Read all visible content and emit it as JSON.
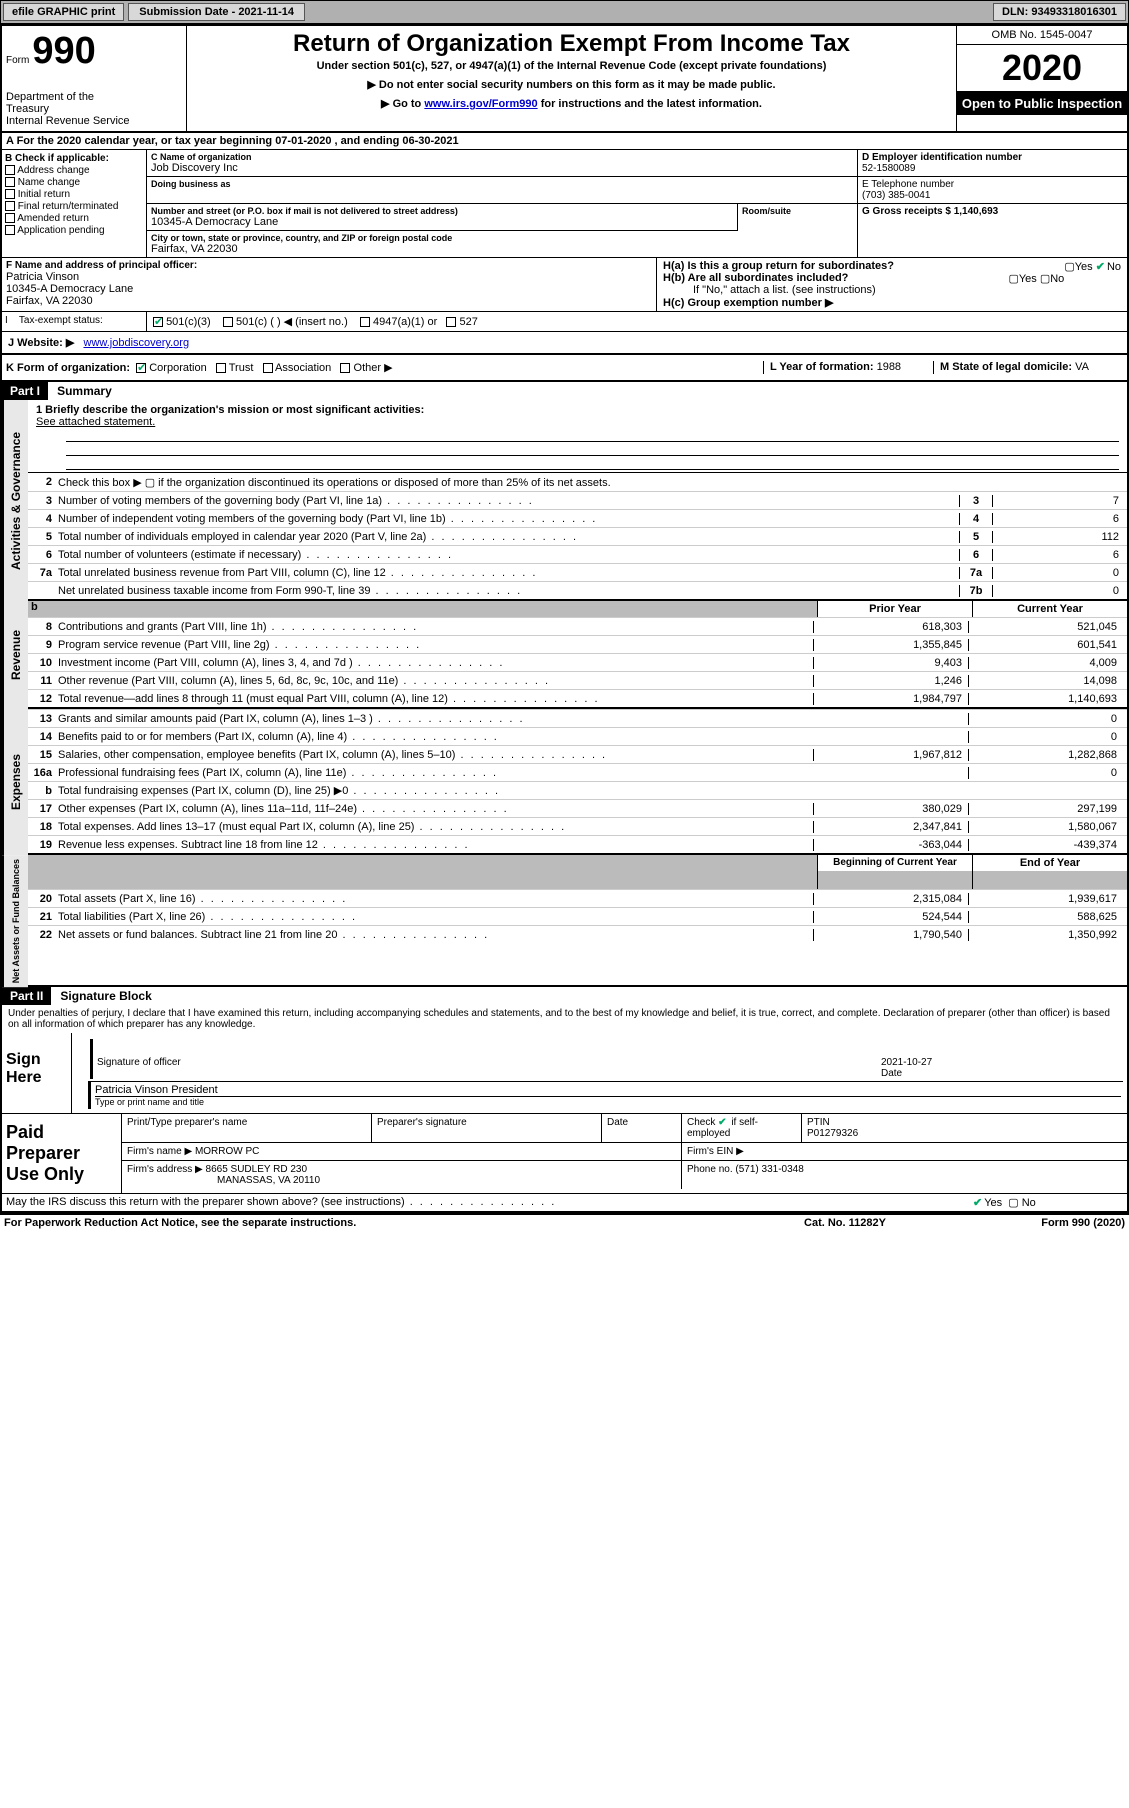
{
  "topbar": {
    "efile": "efile GRAPHIC print",
    "submission_label": "Submission Date - 2021-11-14",
    "dln": "DLN: 93493318016301"
  },
  "header": {
    "form_word": "Form",
    "form_num": "990",
    "dept": "Department of the Treasury\nInternal Revenue Service",
    "title": "Return of Organization Exempt From Income Tax",
    "subtitle": "Under section 501(c), 527, or 4947(a)(1) of the Internal Revenue Code (except private foundations)",
    "note1": "▶ Do not enter social security numbers on this form as it may be made public.",
    "note2_pre": "▶ Go to ",
    "note2_link": "www.irs.gov/Form990",
    "note2_post": " for instructions and the latest information.",
    "omb": "OMB No. 1545-0047",
    "year": "2020",
    "open": "Open to Public Inspection"
  },
  "rowA": "A  For the 2020 calendar year, or tax year beginning 07-01-2020   , and ending 06-30-2021",
  "colB": {
    "head": "B Check if applicable:",
    "items": [
      "Address change",
      "Name change",
      "Initial return",
      "Final return/terminated",
      "Amended return",
      "Application pending"
    ]
  },
  "org": {
    "name_label": "C Name of organization",
    "name": "Job Discovery Inc",
    "dba_label": "Doing business as",
    "addr_label": "Number and street (or P.O. box if mail is not delivered to street address)",
    "addr": "10345-A Democracy Lane",
    "room_label": "Room/suite",
    "city_label": "City or town, state or province, country, and ZIP or foreign postal code",
    "city": "Fairfax, VA  22030"
  },
  "rightCol": {
    "ein_label": "D Employer identification number",
    "ein": "52-1580089",
    "phone_label": "E Telephone number",
    "phone": "(703) 385-0041",
    "gross_label": "G Gross receipts $ 1,140,693"
  },
  "officer": {
    "label": "F  Name and address of principal officer:",
    "name": "Patricia Vinson",
    "addr1": "10345-A Democracy Lane",
    "addr2": "Fairfax, VA  22030"
  },
  "groupH": {
    "ha": "H(a)  Is this a group return for subordinates?",
    "hb": "H(b)  Are all subordinates included?",
    "hnote": "If \"No,\" attach a list. (see instructions)",
    "hc": "H(c)  Group exemption number ▶"
  },
  "taxStatus": {
    "label": "Tax-exempt status:",
    "c3": "501(c)(3)",
    "c": "501(c) (  ) ◀ (insert no.)",
    "a4947": "4947(a)(1) or",
    "s527": "527"
  },
  "website": {
    "label": "J  Website: ▶",
    "url": "www.jobdiscovery.org"
  },
  "rowK": {
    "k": "K Form of organization:",
    "corp": "Corporation",
    "trust": "Trust",
    "assoc": "Association",
    "other": "Other ▶",
    "l_label": "L Year of formation:",
    "l_val": "1988",
    "m_label": "M State of legal domicile:",
    "m_val": "VA"
  },
  "part1": {
    "header": "Part I",
    "title": "Summary"
  },
  "summary": {
    "mission_label": "1   Briefly describe the organization's mission or most significant activities:",
    "mission": "See attached statement.",
    "line2": "Check this box ▶ ▢  if the organization discontinued its operations or disposed of more than 25% of its net assets.",
    "gov": [
      {
        "n": "3",
        "t": "Number of voting members of the governing body (Part VI, line 1a)",
        "b": "3",
        "v": "7"
      },
      {
        "n": "4",
        "t": "Number of independent voting members of the governing body (Part VI, line 1b)",
        "b": "4",
        "v": "6"
      },
      {
        "n": "5",
        "t": "Total number of individuals employed in calendar year 2020 (Part V, line 2a)",
        "b": "5",
        "v": "112"
      },
      {
        "n": "6",
        "t": "Total number of volunteers (estimate if necessary)",
        "b": "6",
        "v": "6"
      },
      {
        "n": "7a",
        "t": "Total unrelated business revenue from Part VIII, column (C), line 12",
        "b": "7a",
        "v": "0"
      },
      {
        "n": "",
        "t": "Net unrelated business taxable income from Form 990-T, line 39",
        "b": "7b",
        "v": "0"
      }
    ],
    "head_prior": "Prior Year",
    "head_curr": "Current Year",
    "revenue": [
      {
        "n": "8",
        "t": "Contributions and grants (Part VIII, line 1h)",
        "p": "618,303",
        "c": "521,045"
      },
      {
        "n": "9",
        "t": "Program service revenue (Part VIII, line 2g)",
        "p": "1,355,845",
        "c": "601,541"
      },
      {
        "n": "10",
        "t": "Investment income (Part VIII, column (A), lines 3, 4, and 7d )",
        "p": "9,403",
        "c": "4,009"
      },
      {
        "n": "11",
        "t": "Other revenue (Part VIII, column (A), lines 5, 6d, 8c, 9c, 10c, and 11e)",
        "p": "1,246",
        "c": "14,098"
      },
      {
        "n": "12",
        "t": "Total revenue—add lines 8 through 11 (must equal Part VIII, column (A), line 12)",
        "p": "1,984,797",
        "c": "1,140,693"
      }
    ],
    "expenses": [
      {
        "n": "13",
        "t": "Grants and similar amounts paid (Part IX, column (A), lines 1–3 )",
        "p": "",
        "c": "0"
      },
      {
        "n": "14",
        "t": "Benefits paid to or for members (Part IX, column (A), line 4)",
        "p": "",
        "c": "0"
      },
      {
        "n": "15",
        "t": "Salaries, other compensation, employee benefits (Part IX, column (A), lines 5–10)",
        "p": "1,967,812",
        "c": "1,282,868"
      },
      {
        "n": "16a",
        "t": "Professional fundraising fees (Part IX, column (A), line 11e)",
        "p": "",
        "c": "0"
      },
      {
        "n": "b",
        "t": "Total fundraising expenses (Part IX, column (D), line 25) ▶0",
        "p": "SHADE",
        "c": "SHADE"
      },
      {
        "n": "17",
        "t": "Other expenses (Part IX, column (A), lines 11a–11d, 11f–24e)",
        "p": "380,029",
        "c": "297,199"
      },
      {
        "n": "18",
        "t": "Total expenses. Add lines 13–17 (must equal Part IX, column (A), line 25)",
        "p": "2,347,841",
        "c": "1,580,067"
      },
      {
        "n": "19",
        "t": "Revenue less expenses. Subtract line 18 from line 12",
        "p": "-363,044",
        "c": "-439,374"
      }
    ],
    "head_beg": "Beginning of Current Year",
    "head_end": "End of Year",
    "netassets": [
      {
        "n": "20",
        "t": "Total assets (Part X, line 16)",
        "p": "2,315,084",
        "c": "1,939,617"
      },
      {
        "n": "21",
        "t": "Total liabilities (Part X, line 26)",
        "p": "524,544",
        "c": "588,625"
      },
      {
        "n": "22",
        "t": "Net assets or fund balances. Subtract line 21 from line 20",
        "p": "1,790,540",
        "c": "1,350,992"
      }
    ]
  },
  "part2": {
    "header": "Part II",
    "title": "Signature Block"
  },
  "sig": {
    "perjury": "Under penalties of perjury, I declare that I have examined this return, including accompanying schedules and statements, and to the best of my knowledge and belief, it is true, correct, and complete. Declaration of preparer (other than officer) is based on all information of which preparer has any knowledge.",
    "here": "Sign Here",
    "sig_officer": "Signature of officer",
    "date": "Date",
    "date_val": "2021-10-27",
    "name_title": "Patricia Vinson  President",
    "typeprint": "Type or print name and title"
  },
  "prep": {
    "label": "Paid Preparer Use Only",
    "h1": "Print/Type preparer's name",
    "h2": "Preparer's signature",
    "h3": "Date",
    "h4a": "Check",
    "h4b": "if self-employed",
    "h5": "PTIN",
    "ptin": "P01279326",
    "firmname_label": "Firm's name   ▶",
    "firmname": "MORROW PC",
    "firmein_label": "Firm's EIN ▶",
    "firmaddr_label": "Firm's address ▶",
    "firmaddr1": "8665 SUDLEY RD 230",
    "firmaddr2": "MANASSAS, VA  20110",
    "phone_label": "Phone no.",
    "phone": "(571) 331-0348"
  },
  "discuss": "May the IRS discuss this return with the preparer shown above? (see instructions)",
  "footer": {
    "left": "For Paperwork Reduction Act Notice, see the separate instructions.",
    "mid": "Cat. No. 11282Y",
    "right": "Form 990 (2020)"
  },
  "colors": {
    "topbar_bg": "#b0b0b0",
    "btn_bg": "#d8d8d8",
    "section_bg": "#e8e8e8",
    "shade": "#bbbbbb",
    "link": "#0000cc",
    "check": "#00aa66"
  }
}
